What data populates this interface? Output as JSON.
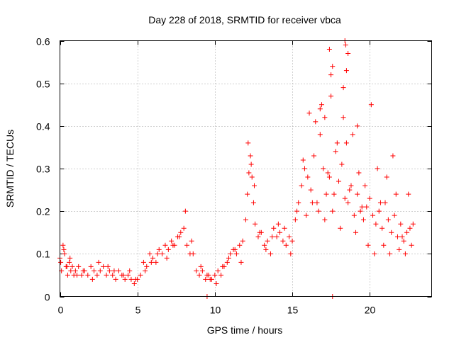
{
  "chart_data": {
    "type": "scatter",
    "title": "Day 228 of 2018, SRMTID for receiver vbca",
    "xlabel": "GPS time / hours",
    "ylabel": "SRMTID / TECUs",
    "xlim": [
      0,
      24
    ],
    "ylim": [
      0,
      0.6
    ],
    "x_ticks": [
      0,
      5,
      10,
      15,
      20
    ],
    "x_tick_labels": [
      "0",
      "5",
      "10",
      "15",
      "20"
    ],
    "y_ticks": [
      0,
      0.1,
      0.2,
      0.3,
      0.4,
      0.5,
      0.6
    ],
    "y_tick_labels": [
      "0",
      "0.1",
      "0.2",
      "0.3",
      "0.4",
      "0.5",
      "0.6"
    ],
    "grid": true,
    "marker": "+",
    "color": "#ff0000",
    "series": [
      {
        "name": "SRMTID",
        "x": [
          0.0,
          0.1,
          0.2,
          0.3,
          0.4,
          0.5,
          0.6,
          0.7,
          0.8,
          0.9,
          1.0,
          1.2,
          1.4,
          1.6,
          1.8,
          2.0,
          2.2,
          2.4,
          2.6,
          2.8,
          3.0,
          3.2,
          3.4,
          3.6,
          3.8,
          4.0,
          4.2,
          4.4,
          4.6,
          4.8,
          5.0,
          5.2,
          5.4,
          5.6,
          5.8,
          6.0,
          6.2,
          6.4,
          6.6,
          6.8,
          7.0,
          7.2,
          7.4,
          7.6,
          7.8,
          8.0,
          8.2,
          8.4,
          8.6,
          8.8,
          9.0,
          9.2,
          9.4,
          9.6,
          9.8,
          10.0,
          10.2,
          10.4,
          10.6,
          10.8,
          11.0,
          11.2,
          11.4,
          11.6,
          11.8,
          12.0,
          12.1,
          12.2,
          12.3,
          12.4,
          12.5,
          12.6,
          12.8,
          13.0,
          13.2,
          13.4,
          13.6,
          13.8,
          14.0,
          14.2,
          14.4,
          14.6,
          14.8,
          15.0,
          15.2,
          15.4,
          15.6,
          15.8,
          16.0,
          16.2,
          16.4,
          16.6,
          16.8,
          17.0,
          17.2,
          17.4,
          17.6,
          17.8,
          18.0,
          18.2,
          18.4,
          18.5,
          18.6,
          18.8,
          19.0,
          19.2,
          19.4,
          19.6,
          19.8,
          20.0,
          20.2,
          20.4,
          20.6,
          20.8,
          21.0,
          21.2,
          21.4,
          21.6,
          21.8,
          22.0,
          22.2,
          22.4,
          22.6,
          22.8,
          0.05,
          0.25,
          0.45,
          0.65,
          1.1,
          1.5,
          2.1,
          2.5,
          3.1,
          3.5,
          4.1,
          4.5,
          4.9,
          5.5,
          5.9,
          6.3,
          6.9,
          7.3,
          7.7,
          8.1,
          8.5,
          9.1,
          9.5,
          9.7,
          10.1,
          10.5,
          10.9,
          11.3,
          11.7,
          12.15,
          12.35,
          12.55,
          12.9,
          13.3,
          13.7,
          14.1,
          14.5,
          14.9,
          15.3,
          15.7,
          15.9,
          16.1,
          16.3,
          16.5,
          16.7,
          16.9,
          17.1,
          17.3,
          17.5,
          17.7,
          17.9,
          18.1,
          18.3,
          18.45,
          18.7,
          18.9,
          19.1,
          19.3,
          19.5,
          19.7,
          19.9,
          20.1,
          20.3,
          20.5,
          20.7,
          20.9,
          21.1,
          21.3,
          21.5,
          21.7,
          21.9,
          22.1,
          22.3,
          22.5,
          22.7,
          9.5,
          17.6,
          17.4,
          17.6,
          17.5,
          18.4,
          18.5,
          18.3,
          18.6,
          16.8,
          17.1,
          19.2
        ],
        "y": [
          0.09,
          0.06,
          0.12,
          0.1,
          0.07,
          0.05,
          0.08,
          0.06,
          0.07,
          0.05,
          0.06,
          0.07,
          0.05,
          0.06,
          0.05,
          0.07,
          0.06,
          0.05,
          0.06,
          0.07,
          0.05,
          0.06,
          0.05,
          0.04,
          0.06,
          0.05,
          0.04,
          0.05,
          0.04,
          0.03,
          0.04,
          0.05,
          0.08,
          0.07,
          0.1,
          0.09,
          0.08,
          0.11,
          0.1,
          0.12,
          0.11,
          0.13,
          0.12,
          0.14,
          0.15,
          0.16,
          0.12,
          0.1,
          0.1,
          0.06,
          0.05,
          0.06,
          0.04,
          0.05,
          0.04,
          0.05,
          0.06,
          0.05,
          0.07,
          0.08,
          0.1,
          0.11,
          0.1,
          0.12,
          0.13,
          0.18,
          0.24,
          0.29,
          0.33,
          0.28,
          0.22,
          0.17,
          0.14,
          0.15,
          0.12,
          0.13,
          0.1,
          0.16,
          0.14,
          0.15,
          0.13,
          0.12,
          0.14,
          0.13,
          0.18,
          0.22,
          0.26,
          0.3,
          0.28,
          0.25,
          0.33,
          0.22,
          0.38,
          0.3,
          0.24,
          0.28,
          0.2,
          0.34,
          0.27,
          0.31,
          0.23,
          0.36,
          0.22,
          0.26,
          0.19,
          0.24,
          0.2,
          0.18,
          0.21,
          0.23,
          0.19,
          0.17,
          0.2,
          0.16,
          0.22,
          0.18,
          0.15,
          0.19,
          0.14,
          0.17,
          0.13,
          0.15,
          0.16,
          0.17,
          0.08,
          0.11,
          0.07,
          0.09,
          0.05,
          0.06,
          0.04,
          0.08,
          0.07,
          0.06,
          0.05,
          0.06,
          0.04,
          0.06,
          0.08,
          0.1,
          0.09,
          0.12,
          0.14,
          0.2,
          0.13,
          0.07,
          0.05,
          0.04,
          0.03,
          0.07,
          0.09,
          0.11,
          0.08,
          0.36,
          0.31,
          0.26,
          0.15,
          0.11,
          0.14,
          0.17,
          0.16,
          0.1,
          0.2,
          0.32,
          0.19,
          0.43,
          0.22,
          0.41,
          0.2,
          0.45,
          0.18,
          0.29,
          0.52,
          0.24,
          0.36,
          0.16,
          0.42,
          0.59,
          0.25,
          0.38,
          0.15,
          0.29,
          0.21,
          0.26,
          0.12,
          0.45,
          0.1,
          0.3,
          0.22,
          0.12,
          0.28,
          0.1,
          0.33,
          0.24,
          0.11,
          0.14,
          0.1,
          0.24,
          0.12,
          0.0,
          0.0,
          0.58,
          0.54,
          0.47,
          0.6,
          0.53,
          0.49,
          0.57,
          0.44,
          0.42,
          0.4
        ]
      }
    ]
  }
}
